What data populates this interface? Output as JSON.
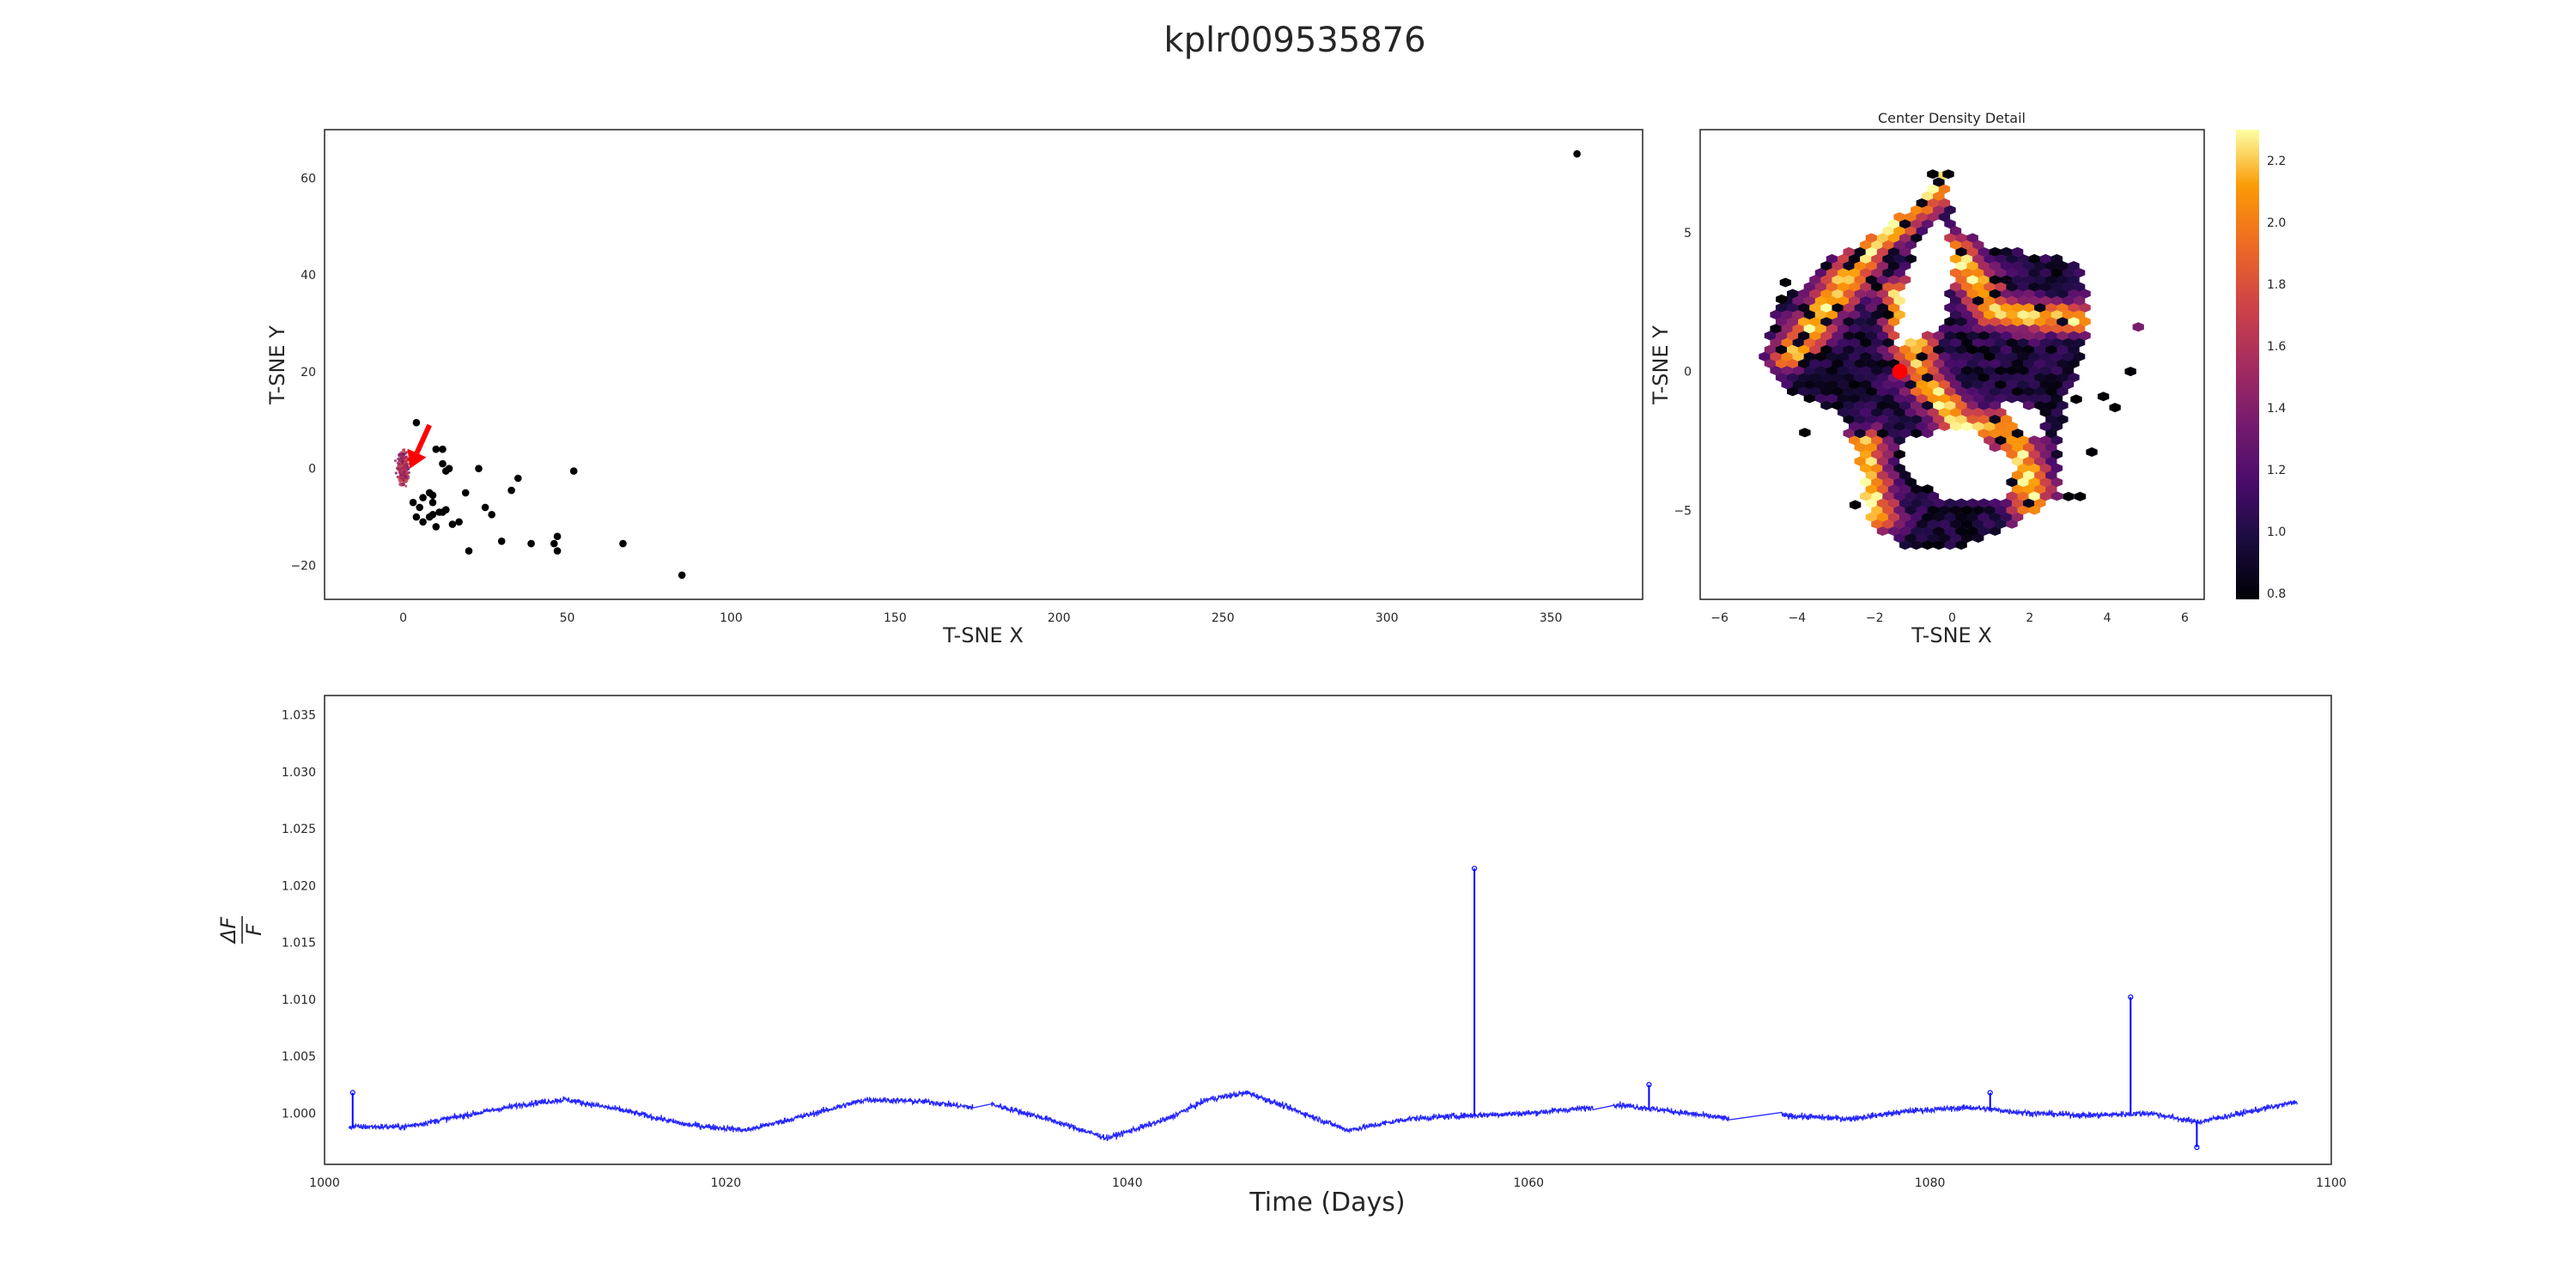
{
  "figure": {
    "title": "kplr009535876"
  },
  "chart_data": [
    {
      "id": "tsne-overview",
      "type": "scatter",
      "xlabel": "T-SNE X",
      "ylabel": "T-SNE Y",
      "xlim": [
        -24,
        378
      ],
      "ylim": [
        -27,
        70
      ],
      "xticks": [
        0,
        50,
        100,
        150,
        200,
        250,
        300,
        350
      ],
      "yticks": [
        -20,
        0,
        20,
        40,
        60
      ],
      "tick_labels_x": [
        "0",
        "50",
        "100",
        "150",
        "200",
        "250",
        "300",
        "350"
      ],
      "tick_labels_y": [
        "−20",
        "0",
        "20",
        "40",
        "60"
      ],
      "grid": false,
      "outlier_points": [
        [
          358,
          65
        ],
        [
          85,
          -22
        ],
        [
          67,
          -15.5
        ],
        [
          52,
          -0.5
        ],
        [
          47,
          -14
        ],
        [
          46,
          -15.5
        ],
        [
          47,
          -17
        ],
        [
          39,
          -15.5
        ],
        [
          35,
          -2
        ],
        [
          33,
          -4.5
        ],
        [
          30,
          -15
        ],
        [
          25,
          -8
        ],
        [
          27,
          -9.5
        ],
        [
          23,
          0
        ],
        [
          20,
          -17
        ],
        [
          19,
          -5
        ],
        [
          17,
          -11
        ],
        [
          15,
          -11.5
        ],
        [
          14,
          0
        ],
        [
          13,
          -0.5
        ],
        [
          12,
          1
        ],
        [
          12,
          4
        ],
        [
          10,
          4
        ],
        [
          13,
          -8.5
        ],
        [
          11,
          -9
        ],
        [
          10,
          -12
        ],
        [
          9,
          -7
        ],
        [
          9,
          -5.5
        ],
        [
          9,
          -9.5
        ],
        [
          8,
          -10
        ],
        [
          6,
          -6
        ],
        [
          6,
          -11
        ],
        [
          5,
          -8
        ],
        [
          4,
          -10
        ],
        [
          3,
          -7
        ],
        [
          4,
          9.5
        ],
        [
          12,
          -9
        ],
        [
          8,
          -5
        ]
      ],
      "cluster_center": [
        0,
        0
      ],
      "highlight": {
        "marker": "arrow",
        "color": "#ff0000",
        "tip": [
          2,
          0
        ],
        "tail": [
          8,
          9
        ]
      }
    },
    {
      "id": "center-density",
      "type": "heatmap",
      "title": "Center Density Detail",
      "xlabel": "T-SNE X",
      "ylabel": "T-SNE Y",
      "xlim": [
        -6.5,
        6.5
      ],
      "ylim": [
        -8.2,
        8.7
      ],
      "xticks": [
        -6,
        -4,
        -2,
        0,
        2,
        4,
        6
      ],
      "yticks": [
        -5,
        0,
        5
      ],
      "tick_labels_x": [
        "−6",
        "−4",
        "−2",
        "0",
        "2",
        "4",
        "6"
      ],
      "tick_labels_y": [
        "−5",
        "0",
        "5"
      ],
      "colormap": "inferno",
      "grid": false,
      "highlight_point": {
        "x": -1.35,
        "y": 0,
        "color": "#ff0000"
      },
      "colorbar": {
        "range": [
          0.78,
          2.3
        ],
        "ticks": [
          0.8,
          1.0,
          1.2,
          1.4,
          1.6,
          1.8,
          2.0,
          2.2
        ],
        "tick_labels": [
          "0.8",
          "1.0",
          "1.2",
          "1.4",
          "1.6",
          "1.8",
          "2.0",
          "2.2"
        ]
      }
    },
    {
      "id": "light-curve",
      "type": "line",
      "xlabel": "Time (Days)",
      "ylabel_numerator": "ΔF",
      "ylabel_denominator": "F",
      "xlim": [
        1000,
        1100
      ],
      "ylim": [
        0.9955,
        1.0367
      ],
      "xticks": [
        1000,
        1020,
        1040,
        1060,
        1080,
        1100
      ],
      "yticks": [
        1.0,
        1.005,
        1.01,
        1.015,
        1.02,
        1.025,
        1.03,
        1.035
      ],
      "tick_labels_x": [
        "1000",
        "1020",
        "1040",
        "1060",
        "1080",
        "1100"
      ],
      "tick_labels_y": [
        "1.000",
        "1.005",
        "1.010",
        "1.015",
        "1.020",
        "1.025",
        "1.030",
        "1.035"
      ],
      "grid": false,
      "series_color": "#0000ff",
      "time_range": [
        1001.2,
        1098.3
      ],
      "gaps": [
        [
          1032.3,
          1033.2
        ],
        [
          1063.2,
          1064.2
        ],
        [
          1070.0,
          1072.6
        ]
      ],
      "baseline_points": [
        [
          1001.2,
          0.9988
        ],
        [
          1004,
          0.9988
        ],
        [
          1007,
          0.9998
        ],
        [
          1010,
          1.0008
        ],
        [
          1012,
          1.0012
        ],
        [
          1015,
          1.0002
        ],
        [
          1018,
          0.999
        ],
        [
          1021,
          0.9985
        ],
        [
          1024,
          0.9998
        ],
        [
          1027,
          1.0012
        ],
        [
          1030,
          1.001
        ],
        [
          1032.3,
          1.0005
        ],
        [
          1033.2,
          1.0008
        ],
        [
          1036,
          0.9995
        ],
        [
          1039,
          0.9978
        ],
        [
          1042,
          0.9995
        ],
        [
          1044,
          1.0012
        ],
        [
          1046,
          1.0018
        ],
        [
          1048,
          1.0005
        ],
        [
          1051,
          0.9985
        ],
        [
          1054,
          0.9995
        ],
        [
          1057,
          0.9998
        ],
        [
          1060,
          1.0
        ],
        [
          1063.2,
          1.0005
        ],
        [
          1064.2,
          1.0008
        ],
        [
          1067,
          1.0002
        ],
        [
          1070,
          0.9995
        ],
        [
          1072.6,
          0.9998
        ],
        [
          1076,
          0.9995
        ],
        [
          1079,
          1.0002
        ],
        [
          1082,
          1.0005
        ],
        [
          1085,
          1.0
        ],
        [
          1088,
          0.9998
        ],
        [
          1091,
          1.0
        ],
        [
          1093.3,
          0.9992
        ],
        [
          1095,
          0.9998
        ],
        [
          1098.3,
          1.001
        ]
      ],
      "spikes": [
        [
          1001.4,
          1.0018
        ],
        [
          1057.3,
          1.0215
        ],
        [
          1066.0,
          1.0025
        ],
        [
          1083.0,
          1.0018
        ],
        [
          1090.0,
          1.0102
        ],
        [
          1093.3,
          0.997
        ]
      ]
    }
  ]
}
